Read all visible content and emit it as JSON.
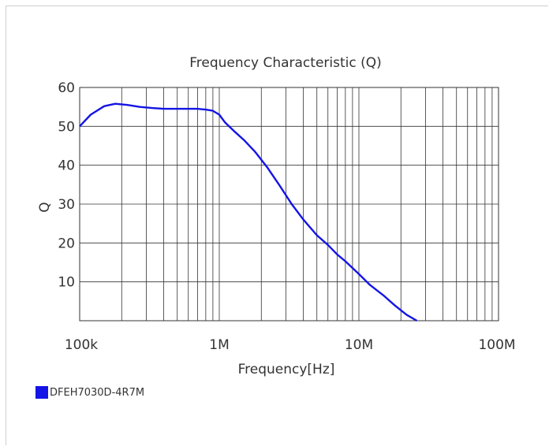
{
  "chart_data": {
    "type": "line",
    "title": "Frequency   Characteristic (Q)",
    "xlabel": "Frequency[Hz]",
    "ylabel": "Q",
    "x_scale": "log",
    "xlim": [
      100000,
      100000000
    ],
    "ylim": [
      0,
      60
    ],
    "grid": true,
    "legend": "bottom-left",
    "x_ticks": [
      {
        "value": 100000,
        "label": "100k"
      },
      {
        "value": 1000000,
        "label": "1M"
      },
      {
        "value": 10000000,
        "label": "10M"
      },
      {
        "value": 100000000,
        "label": "100M"
      }
    ],
    "y_ticks": [
      {
        "value": 10,
        "label": "10"
      },
      {
        "value": 20,
        "label": "20"
      },
      {
        "value": 30,
        "label": "30"
      },
      {
        "value": 40,
        "label": "40"
      },
      {
        "value": 50,
        "label": "50"
      },
      {
        "value": 60,
        "label": "60"
      }
    ],
    "series": [
      {
        "name": "DFEH7030D-4R7M",
        "color": "#1414e6",
        "x": [
          100000,
          120000,
          150000,
          180000,
          220000,
          270000,
          330000,
          400000,
          500000,
          600000,
          700000,
          800000,
          900000,
          1000000,
          1100000,
          1300000,
          1500000,
          1800000,
          2200000,
          2700000,
          3300000,
          4000000,
          5000000,
          6000000,
          7000000,
          8000000,
          10000000,
          12000000,
          15000000,
          18000000,
          22000000,
          26000000
        ],
        "y": [
          50,
          53,
          55.2,
          55.8,
          55.5,
          55,
          54.7,
          54.5,
          54.5,
          54.5,
          54.5,
          54.3,
          54,
          53,
          51,
          48.5,
          46.5,
          43.5,
          39.5,
          34.8,
          30,
          26,
          22,
          19.5,
          17,
          15.3,
          12,
          9.2,
          6.5,
          4,
          1.5,
          0
        ]
      }
    ]
  }
}
